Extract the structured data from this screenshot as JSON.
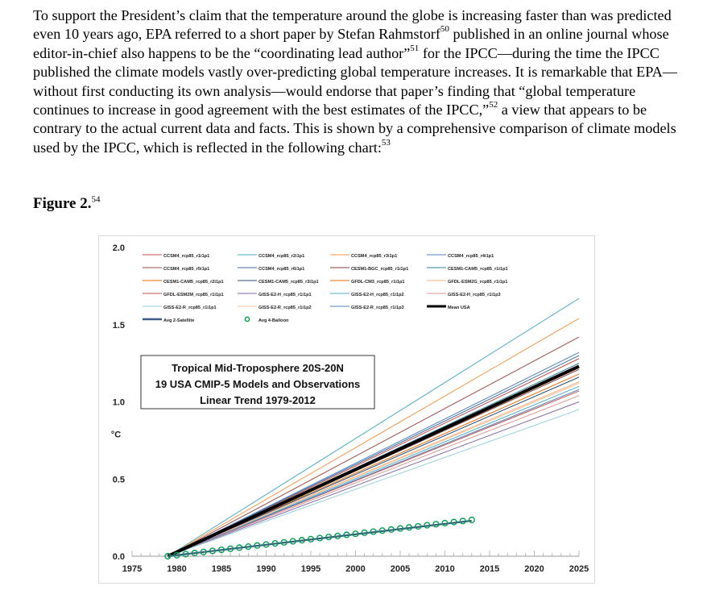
{
  "paragraph": {
    "t1": "To support the President’s claim that the temperature around the globe is increasing faster than was predicted even 10 years ago, EPA referred to a short paper by Stefan Rahmstorf",
    "f1": "50",
    "t2": " published in an online journal whose editor-in-chief also happens to be the “coordinating lead author”",
    "f2": "51",
    "t3": " for the IPCC—during the time the IPCC published the climate models vastly over-predicting global temperature increases.  It is remarkable that EPA—without first conducting its own analysis—would endorse that paper’s finding that “global temperature continues to increase in good agreement with the best estimates of the IPCC,”",
    "f3": "52",
    "t4": " a view that appears to be contrary to the actual current data and facts. This is shown by a comprehensive comparison of climate models used by the IPCC, which is reflected in the following chart:",
    "f4": "53"
  },
  "figure": {
    "label": "Figure 2.",
    "footnote": "54"
  },
  "chart_data": {
    "type": "line",
    "title_lines": [
      "Tropical Mid-Troposphere 20S-20N",
      "19 USA CMIP-5 Models and Observations",
      "Linear Trend 1979-2012"
    ],
    "ylabel": "°C",
    "xlim": [
      1975,
      2025
    ],
    "ylim": [
      0,
      2.0
    ],
    "x_ticks": [
      "1975",
      "1980",
      "1985",
      "1990",
      "1995",
      "2000",
      "2005",
      "2010",
      "2015",
      "2020",
      "2025"
    ],
    "y_ticks": [
      "0.0",
      "0.5",
      "1.0",
      "1.5",
      "2.0"
    ],
    "legend_placement": "top",
    "models": [
      {
        "name": "CCSM4_rcp85_r1i1p1",
        "color": "#c0504d",
        "end": 1.28
      },
      {
        "name": "CCSM4_rcp85_r2i1p1",
        "color": "#4bacc6",
        "end": 1.67
      },
      {
        "name": "CCSM4_rcp85_r3i1p1",
        "color": "#f79646",
        "end": 1.54
      },
      {
        "name": "CCSM4_rcp85_r4i1p1",
        "color": "#4f81bd",
        "end": 1.32
      },
      {
        "name": "CCSM4_rcp85_r5i1p1",
        "color": "#9b4a48",
        "end": 1.42
      },
      {
        "name": "CCSM4_rcp85_r6i1p1",
        "color": "#3c6aa0",
        "end": 1.3
      },
      {
        "name": "CESM1-BGC_rcp85_r1i1p1",
        "color": "#7f3f3d",
        "end": 1.21
      },
      {
        "name": "CESM1-CAM5_rcp85_r1i1p1",
        "color": "#2f7f9a",
        "end": 1.25
      },
      {
        "name": "CESM1-CAM5_rcp85_r2i1p1",
        "color": "#e46c0a",
        "end": 1.18
      },
      {
        "name": "CESM1-CAM5_rcp85_r3i1p1",
        "color": "#2c4d75",
        "end": 1.16
      },
      {
        "name": "GFDL-CM3_rcp85_r1i1p1",
        "color": "#e46c0a",
        "end": 1.22
      },
      {
        "name": "GFDL-ESM2G_rcp85_r1i1p1",
        "color": "#f4b183",
        "end": 1.13
      },
      {
        "name": "GFDL-ESM2M_rcp85_r1i1p1",
        "color": "#c0504d",
        "end": 1.07
      },
      {
        "name": "GISS-E2-H_rcp85_r1i1p1",
        "color": "#8064a2",
        "end": 1.0
      },
      {
        "name": "GISS-E2-H_rcp85_r1i1p2",
        "color": "#4bacc6",
        "end": 1.1
      },
      {
        "name": "GISS-E2-H_rcp85_r1i1p3",
        "color": "#d99694",
        "end": 1.04
      },
      {
        "name": "GISS-E2-R_rcp85_r1i1p1",
        "color": "#93cddd",
        "end": 0.95
      },
      {
        "name": "GISS-E2-R_rcp85_r1i1p2",
        "color": "#fac090",
        "end": 1.12
      },
      {
        "name": "GISS-E2-R_rcp85_r1i1p3",
        "color": "#4f81bd",
        "end": 1.08
      }
    ],
    "mean": {
      "name": "Mean USA",
      "color": "#000000",
      "start_year": 1979,
      "end_year": 2025,
      "start_value": 0.0,
      "end_value": 1.23
    },
    "models_start_year": 1979,
    "models_end_year": 2025,
    "satellite": {
      "name": "Avg 2-Satellite",
      "color": "#3c5a82",
      "start_year": 1979,
      "end_year": 2013,
      "start_value": 0.0,
      "end_value": 0.23
    },
    "balloon": {
      "name": "Avg 4-Balloon",
      "color": "#00a050",
      "years_from": 1979,
      "years_to": 2013,
      "start_value": 0.0,
      "end_value": 0.235
    }
  }
}
